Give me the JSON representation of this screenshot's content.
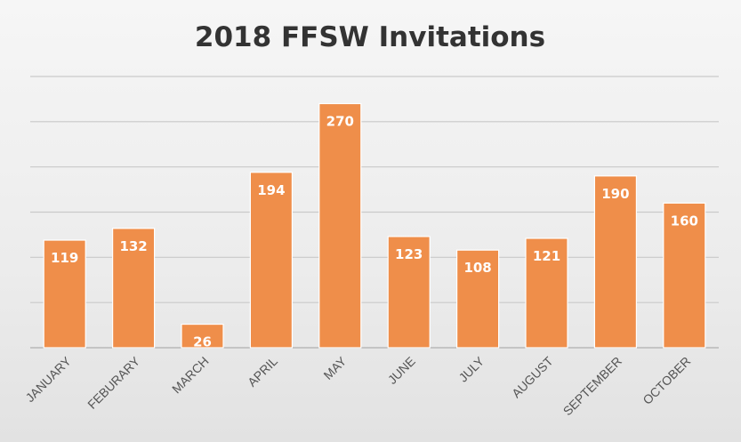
{
  "chart_data": {
    "type": "bar",
    "title": "2018 FFSW Invitations",
    "categories": [
      "JANUARY",
      "FEBURARY",
      "MARCH",
      "APRIL",
      "MAY",
      "JUNE",
      "JULY",
      "AUGUST",
      "SEPTEMBER",
      "OCTOBER"
    ],
    "values": [
      119,
      132,
      26,
      194,
      270,
      123,
      108,
      121,
      190,
      160
    ],
    "xlabel": "",
    "ylabel": "",
    "ylim": [
      0,
      300
    ],
    "y_gridline_step": 50,
    "y_axis_labels_shown": false,
    "grid": true,
    "legend": "none",
    "data_labels": "inside-end",
    "bar_color": "#ef8e4a"
  }
}
